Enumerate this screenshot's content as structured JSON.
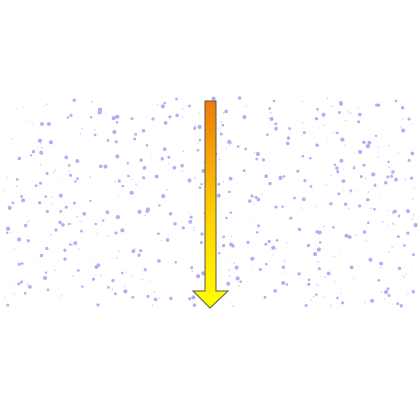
{
  "colors": {
    "background": "#ffffff",
    "particle": "#aeb0f4",
    "particle_small": "#c3c5f7",
    "arrow_gradient_top": "#f07a0a",
    "arrow_gradient_bottom": "#ffff00",
    "arrow_outline": "#555555"
  },
  "field": {
    "icon": "particle-dots",
    "description_visible": false
  },
  "arrow": {
    "icon": "down-arrow-icon",
    "direction": "down"
  }
}
